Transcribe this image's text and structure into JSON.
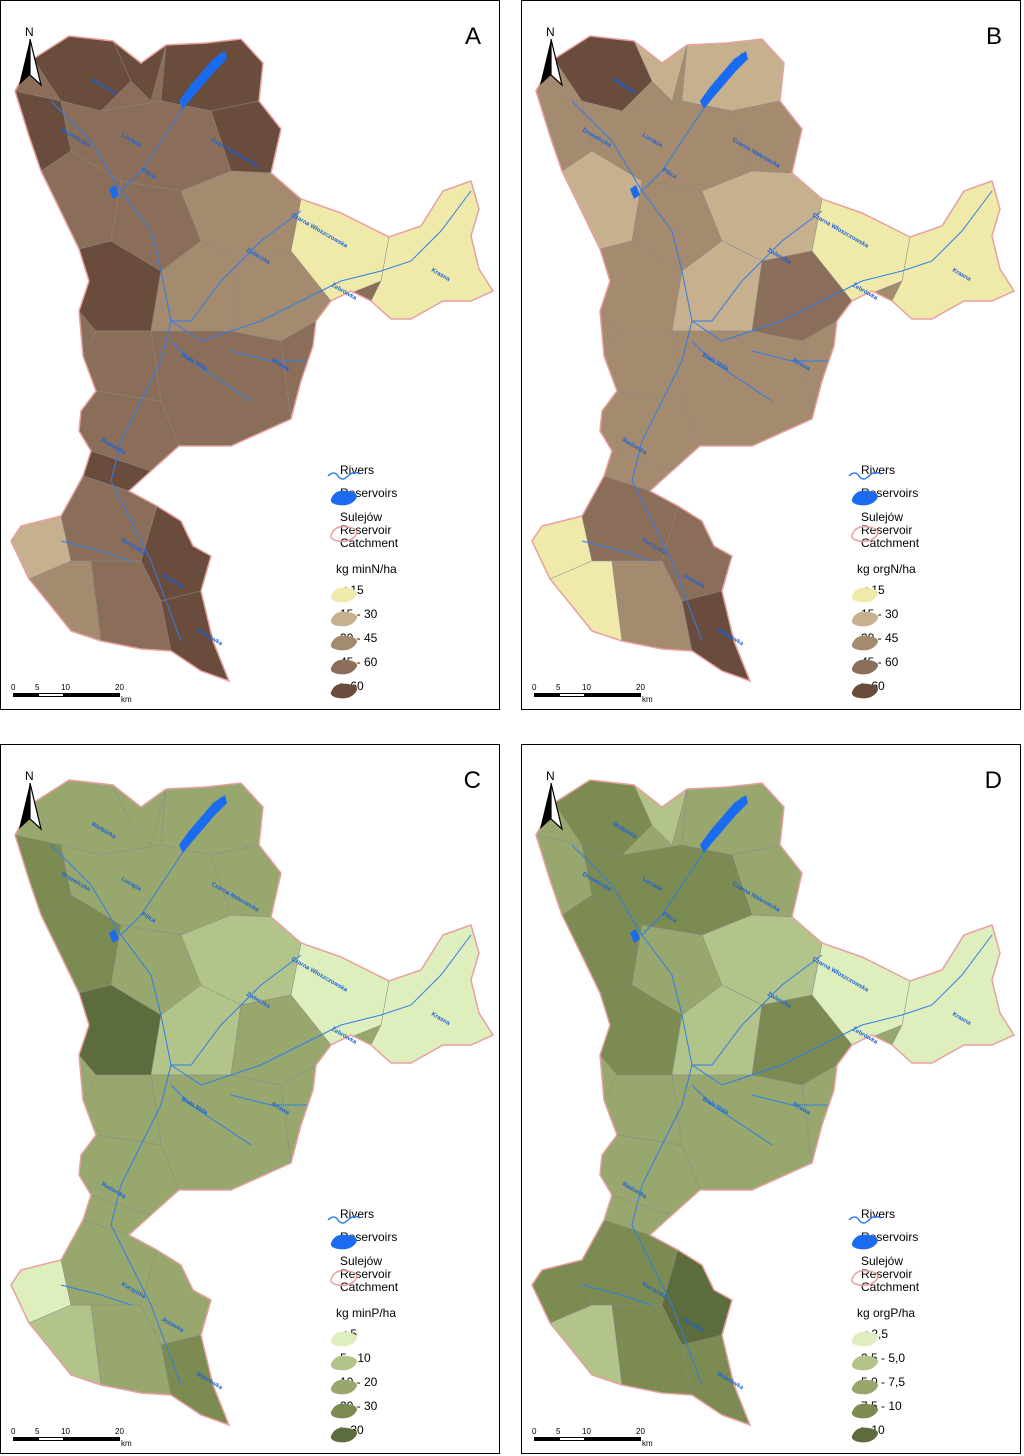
{
  "maps": [
    {
      "letter": "A",
      "unit_label": "kg minN/ha",
      "classes": [
        "< 15",
        "15 - 30",
        "30 - 45",
        "45 - 60",
        "> 60"
      ],
      "palette": [
        "#efeaaa",
        "#c6b08e",
        "#a48a6e",
        "#8a6e5a",
        "#6a4c3c"
      ],
      "dominant": 3
    },
    {
      "letter": "B",
      "unit_label": "kg orgN/ha",
      "classes": [
        "< 15",
        "15 - 30",
        "30 - 45",
        "45 - 60",
        "> 60"
      ],
      "palette": [
        "#efeaaa",
        "#c6b08e",
        "#a48a6e",
        "#8a6e5a",
        "#6a4c3c"
      ],
      "dominant": 2
    },
    {
      "letter": "C",
      "unit_label": "kg minP/ha",
      "classes": [
        "< 5",
        "5 - 10",
        "10 - 20",
        "20 - 30",
        "> 30"
      ],
      "palette": [
        "#dfeebd",
        "#b2c48a",
        "#97a76e",
        "#7b8b52",
        "#5d6c3c"
      ],
      "dominant": 2
    },
    {
      "letter": "D",
      "unit_label": "kg orgP/ha",
      "classes": [
        "< 2,5",
        "2,5 - 5,0",
        "5,0 - 7,5",
        "7,5 - 10",
        "> 10"
      ],
      "palette": [
        "#dfeebd",
        "#b2c48a",
        "#97a76e",
        "#7b8b52",
        "#5d6c3c"
      ],
      "dominant": 2
    }
  ],
  "legend": {
    "rivers": "Rivers",
    "reservoirs": "Reservoirs",
    "catchment_line1": "Sulejów",
    "catchment_line2": "Reservoir",
    "catchment_line3": "Catchment"
  },
  "north_label": "N",
  "scale": {
    "ticks": [
      "0",
      "5",
      "10",
      "20"
    ],
    "unit": "km"
  },
  "river_names": [
    "Wolbórka",
    "Luciąża",
    "Czarna Maleniecka",
    "Pilica",
    "Czarna Włoszczowska",
    "Zwleczka",
    "Żebrówka",
    "Krasna",
    "Biała Nida",
    "Strawa",
    "Radomka",
    "Kurzynka",
    "Jeżówka",
    "Drzewiczka",
    "Bobrówka"
  ],
  "colors": {
    "river": "#2f7de8",
    "reservoir": "#1b6bf0",
    "catchment_border": "#e8a0a0",
    "frame": "#000000"
  }
}
